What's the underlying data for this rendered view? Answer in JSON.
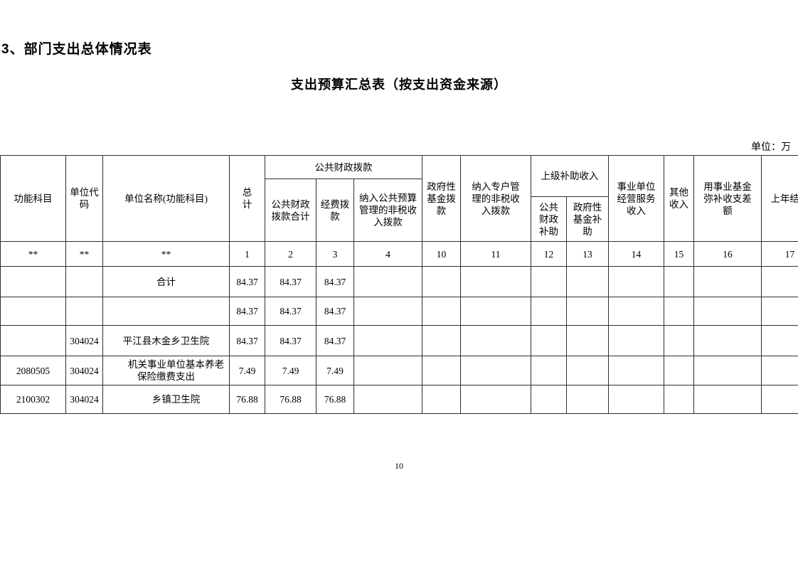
{
  "page": {
    "section_title": "3、部门支出总体情况表",
    "table_title": "支出预算汇总表（按支出资金来源）",
    "unit_note": "单位：万",
    "page_number": "10"
  },
  "table": {
    "headers": {
      "col_function": "功能科目",
      "col_unit_code": "单位代\n码",
      "col_unit_name": "单位名称(功能科目)",
      "col_total": "总\n计",
      "group_public_finance": "公共财政拨款",
      "col_pf_subtotal": "公共财政\n拨款合计",
      "col_funding": "经费拨\n款",
      "col_nontax_public_budget": "纳入公共预算\n管理的非税收\n入拨款",
      "col_gov_fund": "政府性\n基金拨\n款",
      "col_nontax_special_account": "纳入专户管\n理的非税收\n入拨款",
      "group_superior_subsidy": "上级补助收入",
      "col_pf_subsidy": "公共\n财政\n补助",
      "col_gov_fund_subsidy": "政府性\n基金补\n助",
      "col_operating_income": "事业单位\n经营服务\n收入",
      "col_other_income": "其他\n收入",
      "col_fund_gap": "用事业基金\n弥补收支差\n额",
      "col_prev_year_carryover": "上年结转"
    },
    "index_row": [
      "**",
      "**",
      "**",
      "1",
      "2",
      "3",
      "4",
      "10",
      "11",
      "12",
      "13",
      "14",
      "15",
      "16",
      "17"
    ],
    "rows": [
      {
        "name_align": "left",
        "cells": [
          "",
          "",
          "合计",
          "84.37",
          "84.37",
          "84.37",
          "",
          "",
          "",
          "",
          "",
          "",
          "",
          "",
          ""
        ]
      },
      {
        "name_align": "left",
        "cells": [
          "",
          "",
          "",
          "84.37",
          "84.37",
          "84.37",
          "",
          "",
          "",
          "",
          "",
          "",
          "",
          "",
          ""
        ]
      },
      {
        "name_align": "center",
        "cells": [
          "",
          "304024",
          "平江县木金乡卫生院",
          "84.37",
          "84.37",
          "84.37",
          "",
          "",
          "",
          "",
          "",
          "",
          "",
          "",
          ""
        ]
      },
      {
        "name_align": "indent",
        "cells": [
          "2080505",
          "304024",
          "机关事业单位基本养老保险缴费支出",
          "7.49",
          "7.49",
          "7.49",
          "",
          "",
          "",
          "",
          "",
          "",
          "",
          "",
          ""
        ]
      },
      {
        "name_align": "indent",
        "cells": [
          "2100302",
          "304024",
          "乡镇卫生院",
          "76.88",
          "76.88",
          "76.88",
          "",
          "",
          "",
          "",
          "",
          "",
          "",
          "",
          ""
        ]
      }
    ]
  }
}
